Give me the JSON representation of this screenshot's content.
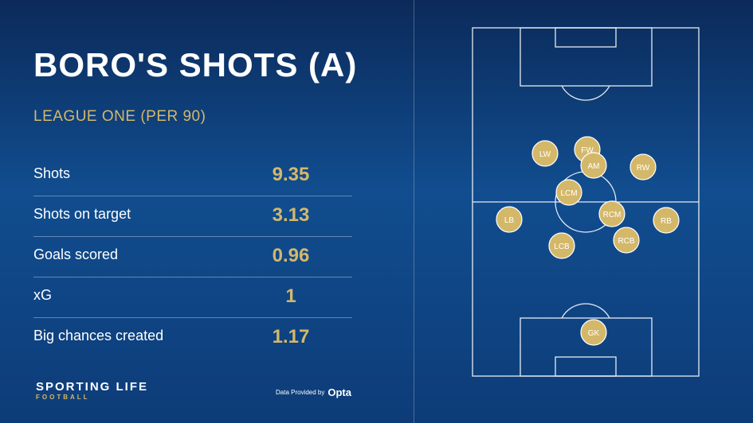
{
  "header": {
    "title": "BORO'S SHOTS (A)",
    "subtitle": "LEAGUE ONE (PER 90)"
  },
  "stats": [
    {
      "label": "Shots",
      "value": "9.35"
    },
    {
      "label": "Shots on target",
      "value": "3.13"
    },
    {
      "label": "Goals scored",
      "value": "0.96"
    },
    {
      "label": "xG",
      "value": "1"
    },
    {
      "label": "Big chances created",
      "value": "1.17"
    }
  ],
  "brand": {
    "name": "SPORTING LIFE",
    "sub": "FOOTBALL"
  },
  "provider": {
    "label": "Data Provided by",
    "logo": "Opta"
  },
  "formation": {
    "positions": [
      "LW",
      "FW",
      "AM",
      "RW",
      "LCM",
      "LB",
      "RCM",
      "RB",
      "LCB",
      "RCB",
      "GK"
    ]
  },
  "colors": {
    "accent": "#d4b86a",
    "background": "#114d8f",
    "text": "#ffffff"
  }
}
